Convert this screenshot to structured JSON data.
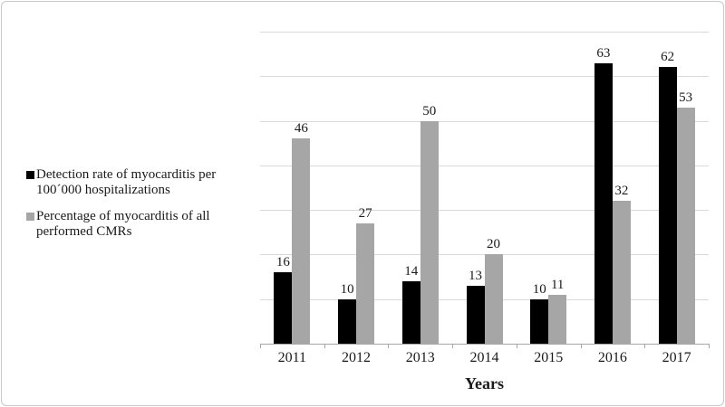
{
  "figure": {
    "background": "#ffffff",
    "border_color": "#c8c8c8",
    "grid_color": "#d9d9d9",
    "axis_color": "#a6a6a6",
    "text_color": "#1a1a1a"
  },
  "chart_data": {
    "type": "bar",
    "title": "",
    "xlabel": "Years",
    "ylabel": "",
    "categories": [
      "2011",
      "2012",
      "2013",
      "2014",
      "2015",
      "2016",
      "2017"
    ],
    "series": [
      {
        "name": "Detection rate of myocarditis per 100´000 hospitalizations",
        "color": "#000000",
        "values": [
          16,
          10,
          14,
          13,
          10,
          63,
          62
        ]
      },
      {
        "name": "Percentage of myocarditis of all performed CMRs",
        "color": "#a6a6a6",
        "values": [
          46,
          27,
          50,
          20,
          11,
          32,
          53
        ]
      }
    ],
    "ylim": [
      0,
      70
    ],
    "gridline_step": 10,
    "grid": true,
    "y_axis_tick_labels_visible": false,
    "data_labels": true,
    "legend_position": "left"
  },
  "legend": {
    "items": [
      {
        "lines": "Detection rate of myocarditis per\n100´000 hospitalizations",
        "color": "#000000"
      },
      {
        "lines": "Percentage of myocarditis of all\nperformed CMRs",
        "color": "#a6a6a6"
      }
    ]
  }
}
